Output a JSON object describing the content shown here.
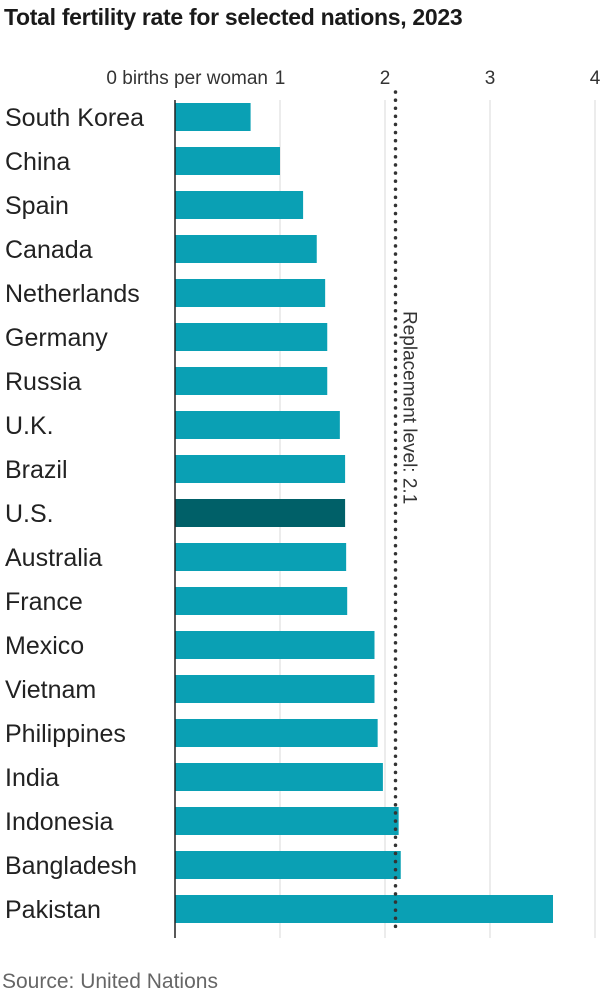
{
  "chart_data": {
    "type": "bar",
    "orientation": "horizontal",
    "title": "Total fertility rate for selected nations, 2023",
    "xlabel": "births per woman",
    "ylabel": "",
    "categories": [
      "South Korea",
      "China",
      "Spain",
      "Canada",
      "Netherlands",
      "Germany",
      "Russia",
      "U.K.",
      "Brazil",
      "U.S.",
      "Australia",
      "France",
      "Mexico",
      "Vietnam",
      "Philippines",
      "India",
      "Indonesia",
      "Bangladesh",
      "Pakistan"
    ],
    "values": [
      0.72,
      1.0,
      1.22,
      1.35,
      1.43,
      1.45,
      1.45,
      1.57,
      1.62,
      1.62,
      1.63,
      1.64,
      1.9,
      1.9,
      1.93,
      1.98,
      2.13,
      2.15,
      3.6
    ],
    "highlight": "U.S.",
    "xlim": [
      0,
      4
    ],
    "x_ticks": [
      0,
      1,
      2,
      3,
      4
    ],
    "x_tick_labels": [
      "0 births per woman",
      "1",
      "2",
      "3",
      "4"
    ],
    "reference_line": {
      "value": 2.1,
      "label": "Replacement level: 2.1"
    },
    "colors": {
      "bar": "#0aa0b4",
      "highlight": "#006068",
      "grid": "#d8d8d8",
      "axis": "#222222",
      "reference": "#333333"
    }
  },
  "source": "Source: United Nations"
}
